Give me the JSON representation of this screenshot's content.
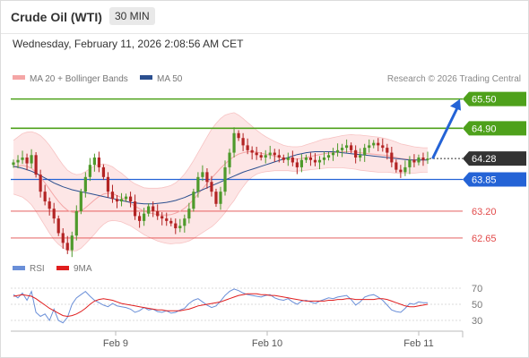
{
  "header": {
    "title": "Crude Oil (WTI)",
    "timeframe": "30 MIN"
  },
  "datetime": "Wednesday, February 11, 2026 2:08:56 AM CET",
  "legend": {
    "ma20": "MA 20 + Bollinger Bands",
    "ma50": "MA 50",
    "credit": "Research © 2026 Trading Central"
  },
  "colors": {
    "ma20": "#f4a6a6",
    "ma50": "#2b4f8f",
    "band_fill": "#fde3e3",
    "green": "#4ea11b",
    "blue": "#2463d6",
    "red": "#e24a4a",
    "up_candle": "#4e9a2b",
    "down_candle": "#b32424",
    "current": "#333333",
    "rsi": "#6a8fd8",
    "rsi_ma": "#e01e1e"
  },
  "chart_data": [
    {
      "type": "candlestick",
      "ylim": [
        62.3,
        65.75
      ],
      "x_ticks": [
        "Feb 9",
        "Feb 10",
        "Feb 11"
      ],
      "current_price": 64.28,
      "levels": [
        {
          "value": 65.5,
          "label": "65.50",
          "kind": "resistance"
        },
        {
          "value": 64.9,
          "label": "64.90",
          "kind": "resistance"
        },
        {
          "value": 64.28,
          "label": "64.28",
          "kind": "current"
        },
        {
          "value": 63.85,
          "label": "63.85",
          "kind": "pivot"
        },
        {
          "value": 63.2,
          "label": "63.20",
          "kind": "support"
        },
        {
          "value": 62.65,
          "label": "62.65",
          "kind": "support"
        }
      ],
      "projection": {
        "from": 64.28,
        "to": 65.5
      },
      "close": [
        64.2,
        64.25,
        64.3,
        64.18,
        64.35,
        63.95,
        63.6,
        63.4,
        63.25,
        63.05,
        62.75,
        62.55,
        62.4,
        62.7,
        63.2,
        63.6,
        63.9,
        64.15,
        64.3,
        64.1,
        63.9,
        63.6,
        63.45,
        63.4,
        63.45,
        63.5,
        63.4,
        63.1,
        63.0,
        63.15,
        63.3,
        63.2,
        63.1,
        63.05,
        63.0,
        62.95,
        62.85,
        62.9,
        63.05,
        63.25,
        63.6,
        63.9,
        64.0,
        63.8,
        63.6,
        63.35,
        63.6,
        64.1,
        64.4,
        64.8,
        64.7,
        64.55,
        64.45,
        64.4,
        64.35,
        64.3,
        64.35,
        64.4,
        64.35,
        64.3,
        64.25,
        64.3,
        64.2,
        64.1,
        64.25,
        64.3,
        64.25,
        64.2,
        64.25,
        64.3,
        64.35,
        64.4,
        64.45,
        64.5,
        64.55,
        64.45,
        64.3,
        64.35,
        64.5,
        64.55,
        64.6,
        64.55,
        64.5,
        64.4,
        64.2,
        64.05,
        64.0,
        64.1,
        64.25,
        64.2,
        64.3,
        64.25,
        64.28
      ],
      "ma20": [
        64.1,
        64.12,
        64.14,
        64.12,
        64.08,
        64.0,
        63.9,
        63.78,
        63.65,
        63.52,
        63.4,
        63.3,
        63.22,
        63.18,
        63.17,
        63.2,
        63.27,
        63.35,
        63.43,
        63.5,
        63.55,
        63.57,
        63.56,
        63.52,
        63.48,
        63.42,
        63.36,
        63.3,
        63.25,
        63.2,
        63.17,
        63.15,
        63.13,
        63.12,
        63.12,
        63.13,
        63.16,
        63.2,
        63.26,
        63.34,
        63.44,
        63.55,
        63.66,
        63.77,
        63.88,
        63.98,
        64.08,
        64.17,
        64.25,
        64.32,
        64.37,
        64.4,
        64.42,
        64.42,
        64.41,
        64.39,
        64.37,
        64.35,
        64.33,
        64.31,
        64.29,
        64.28,
        64.27,
        64.27,
        64.28,
        64.3,
        64.32,
        64.34,
        64.36,
        64.38,
        64.39,
        64.4,
        64.41,
        64.42,
        64.42,
        64.42,
        64.41,
        64.4,
        64.39,
        64.38,
        64.37,
        64.36,
        64.35,
        64.34,
        64.32,
        64.3,
        64.28,
        64.27,
        64.26,
        64.25,
        64.25,
        64.25,
        64.25
      ],
      "ma50": [
        64.12,
        64.1,
        64.08,
        64.05,
        64.02,
        63.98,
        63.93,
        63.88,
        63.83,
        63.78,
        63.74,
        63.7,
        63.67,
        63.64,
        63.62,
        63.6,
        63.58,
        63.56,
        63.54,
        63.52,
        63.5,
        63.48,
        63.46,
        63.44,
        63.42,
        63.4,
        63.38,
        63.37,
        63.36,
        63.35,
        63.35,
        63.35,
        63.36,
        63.37,
        63.38,
        63.4,
        63.42,
        63.45,
        63.48,
        63.52,
        63.56,
        63.6,
        63.64,
        63.68,
        63.72,
        63.76,
        63.8,
        63.84,
        63.88,
        63.92,
        63.96,
        64.0,
        64.03,
        64.06,
        64.09,
        64.12,
        64.15,
        64.18,
        64.21,
        64.24,
        64.27,
        64.3,
        64.33,
        64.36,
        64.38,
        64.4,
        64.41,
        64.42,
        64.42,
        64.42,
        64.42,
        64.42,
        64.41,
        64.4,
        64.39,
        64.38,
        64.37,
        64.36,
        64.35,
        64.34,
        64.33,
        64.32,
        64.31,
        64.3,
        64.29,
        64.28,
        64.27,
        64.26,
        64.25,
        64.25,
        64.25,
        64.25,
        64.25
      ],
      "bb_width": [
        0.55,
        0.6,
        0.65,
        0.7,
        0.75,
        0.8,
        0.85,
        0.88,
        0.9,
        0.9,
        0.88,
        0.85,
        0.82,
        0.8,
        0.78,
        0.76,
        0.74,
        0.72,
        0.7,
        0.66,
        0.62,
        0.58,
        0.55,
        0.52,
        0.5,
        0.48,
        0.46,
        0.46,
        0.47,
        0.48,
        0.5,
        0.52,
        0.54,
        0.56,
        0.58,
        0.6,
        0.62,
        0.66,
        0.7,
        0.75,
        0.8,
        0.85,
        0.9,
        0.95,
        1.0,
        1.02,
        1.02,
        1.0,
        0.95,
        0.9,
        0.8,
        0.7,
        0.6,
        0.52,
        0.45,
        0.4,
        0.36,
        0.33,
        0.3,
        0.28,
        0.26,
        0.25,
        0.25,
        0.25,
        0.25,
        0.26,
        0.27,
        0.28,
        0.29,
        0.3,
        0.3,
        0.31,
        0.32,
        0.33,
        0.34,
        0.35,
        0.35,
        0.36,
        0.36,
        0.36,
        0.36,
        0.36,
        0.35,
        0.34,
        0.33,
        0.32,
        0.3,
        0.29,
        0.28,
        0.27,
        0.26,
        0.25,
        0.25
      ]
    },
    {
      "type": "line",
      "series": [
        {
          "name": "RSI",
          "values": [
            62,
            58,
            64,
            55,
            66,
            40,
            35,
            38,
            30,
            44,
            30,
            27,
            34,
            50,
            58,
            62,
            66,
            60,
            55,
            52,
            49,
            47,
            51,
            48,
            47,
            46,
            44,
            40,
            42,
            46,
            43,
            44,
            41,
            40,
            42,
            39,
            40,
            43,
            45,
            51,
            55,
            57,
            53,
            49,
            46,
            48,
            54,
            61,
            66,
            69,
            67,
            64,
            62,
            61,
            60,
            59,
            61,
            62,
            58,
            56,
            55,
            57,
            53,
            50,
            54,
            55,
            53,
            51,
            54,
            56,
            58,
            57,
            59,
            60,
            61,
            56,
            49,
            53,
            59,
            61,
            62,
            59,
            55,
            49,
            43,
            41,
            40,
            45,
            51,
            50,
            53,
            52,
            52
          ]
        },
        {
          "name": "9MA",
          "values": [
            60,
            61,
            62,
            61,
            60,
            57,
            53,
            49,
            45,
            42,
            39,
            36,
            35,
            36,
            38,
            41,
            45,
            50,
            54,
            56,
            57,
            56,
            55,
            53,
            51,
            50,
            49,
            48,
            47,
            46,
            45,
            44,
            43,
            43,
            42,
            42,
            42,
            42,
            43,
            44,
            46,
            48,
            49,
            50,
            51,
            52,
            53,
            55,
            57,
            59,
            61,
            62,
            63,
            63,
            63,
            62,
            62,
            61,
            61,
            60,
            59,
            58,
            57,
            56,
            55,
            54,
            54,
            54,
            54,
            54,
            55,
            55,
            56,
            56,
            57,
            57,
            56,
            56,
            56,
            56,
            56,
            57,
            57,
            56,
            54,
            52,
            50,
            48,
            47,
            47,
            48,
            49,
            50
          ]
        }
      ],
      "ylim": [
        20,
        80
      ],
      "y_ticks": [
        70,
        50,
        30
      ]
    }
  ]
}
